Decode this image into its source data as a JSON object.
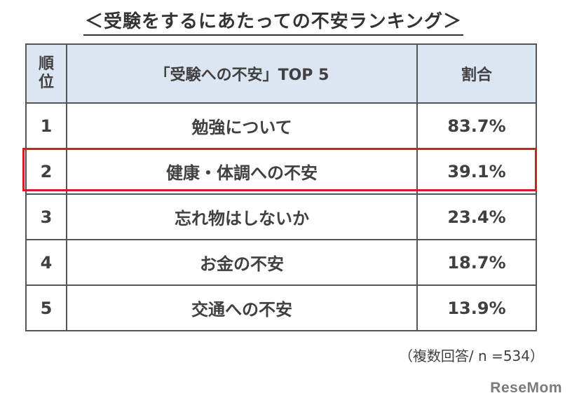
{
  "title": "＜受験をするにあたっての不安ランキング＞",
  "chart_data": {
    "type": "table",
    "columns": [
      "順位",
      "「受験への不安」TOP 5",
      "割合"
    ],
    "rows": [
      {
        "rank": "1",
        "item": "勉強について",
        "value": 83.7,
        "label": "83.7%"
      },
      {
        "rank": "2",
        "item": "健康・体調への不安",
        "value": 39.1,
        "label": "39.1%"
      },
      {
        "rank": "3",
        "item": "忘れ物はしないか",
        "value": 23.4,
        "label": "23.4%"
      },
      {
        "rank": "4",
        "item": "お金の不安",
        "value": 18.7,
        "label": "18.7%"
      },
      {
        "rank": "5",
        "item": "交通への不安",
        "value": 13.9,
        "label": "13.9%"
      }
    ],
    "highlighted_rank": "2",
    "highlight_color": "#d21f26",
    "header_color": "#dce6f2"
  },
  "note": "（複数回答/ n =534）",
  "logo": "ReseMom"
}
